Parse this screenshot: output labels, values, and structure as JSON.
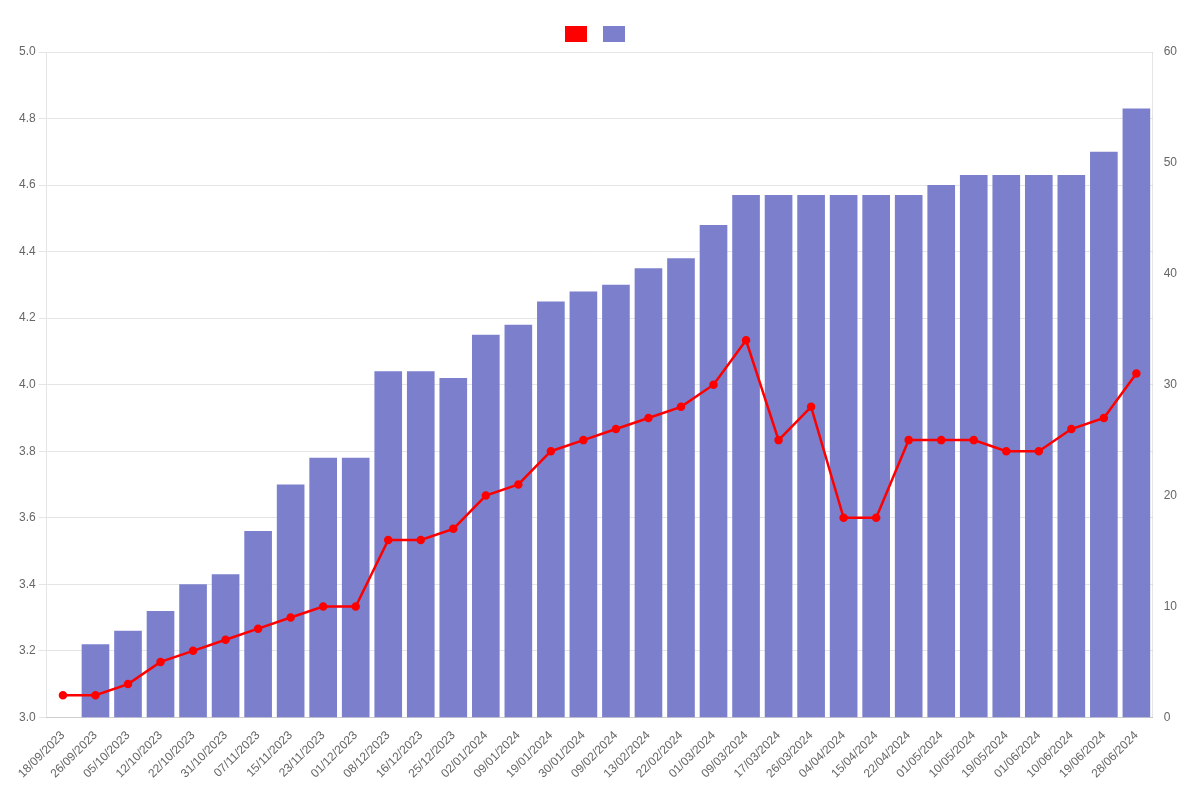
{
  "chart_data": {
    "type": "bar",
    "categories": [
      "18/09/2023",
      "26/09/2023",
      "05/10/2023",
      "12/10/2023",
      "22/10/2023",
      "31/10/2023",
      "07/11/2023",
      "15/11/2023",
      "23/11/2023",
      "01/12/2023",
      "08/12/2023",
      "16/12/2023",
      "25/12/2023",
      "02/01/2024",
      "09/01/2024",
      "19/01/2024",
      "30/01/2024",
      "09/02/2024",
      "13/02/2024",
      "22/02/2024",
      "01/03/2024",
      "09/03/2024",
      "17/03/2024",
      "26/03/2024",
      "04/04/2024",
      "15/04/2024",
      "22/04/2024",
      "01/05/2024",
      "10/05/2024",
      "19/05/2024",
      "01/06/2024",
      "10/06/2024",
      "19/06/2024",
      "28/06/2024"
    ],
    "series": [
      {
        "type": "bar",
        "color": "#7B7FCC",
        "values": [
          null,
          3.22,
          3.26,
          3.32,
          3.4,
          3.43,
          3.56,
          3.7,
          3.78,
          3.78,
          4.04,
          4.04,
          4.02,
          4.15,
          4.18,
          4.25,
          4.28,
          4.3,
          4.35,
          4.38,
          4.48,
          4.57,
          4.57,
          4.57,
          4.57,
          4.57,
          4.57,
          4.6,
          4.63,
          4.63,
          4.63,
          4.63,
          4.7,
          4.83
        ]
      },
      {
        "type": "line",
        "color": "#FF0000",
        "marker": "circle",
        "axis": "y2",
        "values": [
          2,
          2,
          3,
          5,
          6,
          7,
          8,
          9,
          10,
          10,
          16,
          16,
          17,
          20,
          21,
          24,
          25,
          26,
          27,
          28,
          30,
          34,
          25,
          28,
          18,
          18,
          25,
          25,
          25,
          24,
          24,
          26,
          27,
          31
        ]
      }
    ],
    "ylim": [
      3.0,
      5.0
    ],
    "yticks": [
      {
        "value": 3.0,
        "label": "3.0"
      },
      3.2,
      3.4,
      3.6,
      3.8,
      {
        "value": 4.0,
        "label": "4.0"
      },
      4.2,
      4.4,
      4.6,
      4.8,
      {
        "value": 5.0,
        "label": "5.0"
      }
    ],
    "y2lim": [
      0,
      60
    ],
    "y2ticks": [
      0,
      10,
      20,
      30,
      40,
      50,
      60
    ],
    "grid": true,
    "legend": "top"
  }
}
